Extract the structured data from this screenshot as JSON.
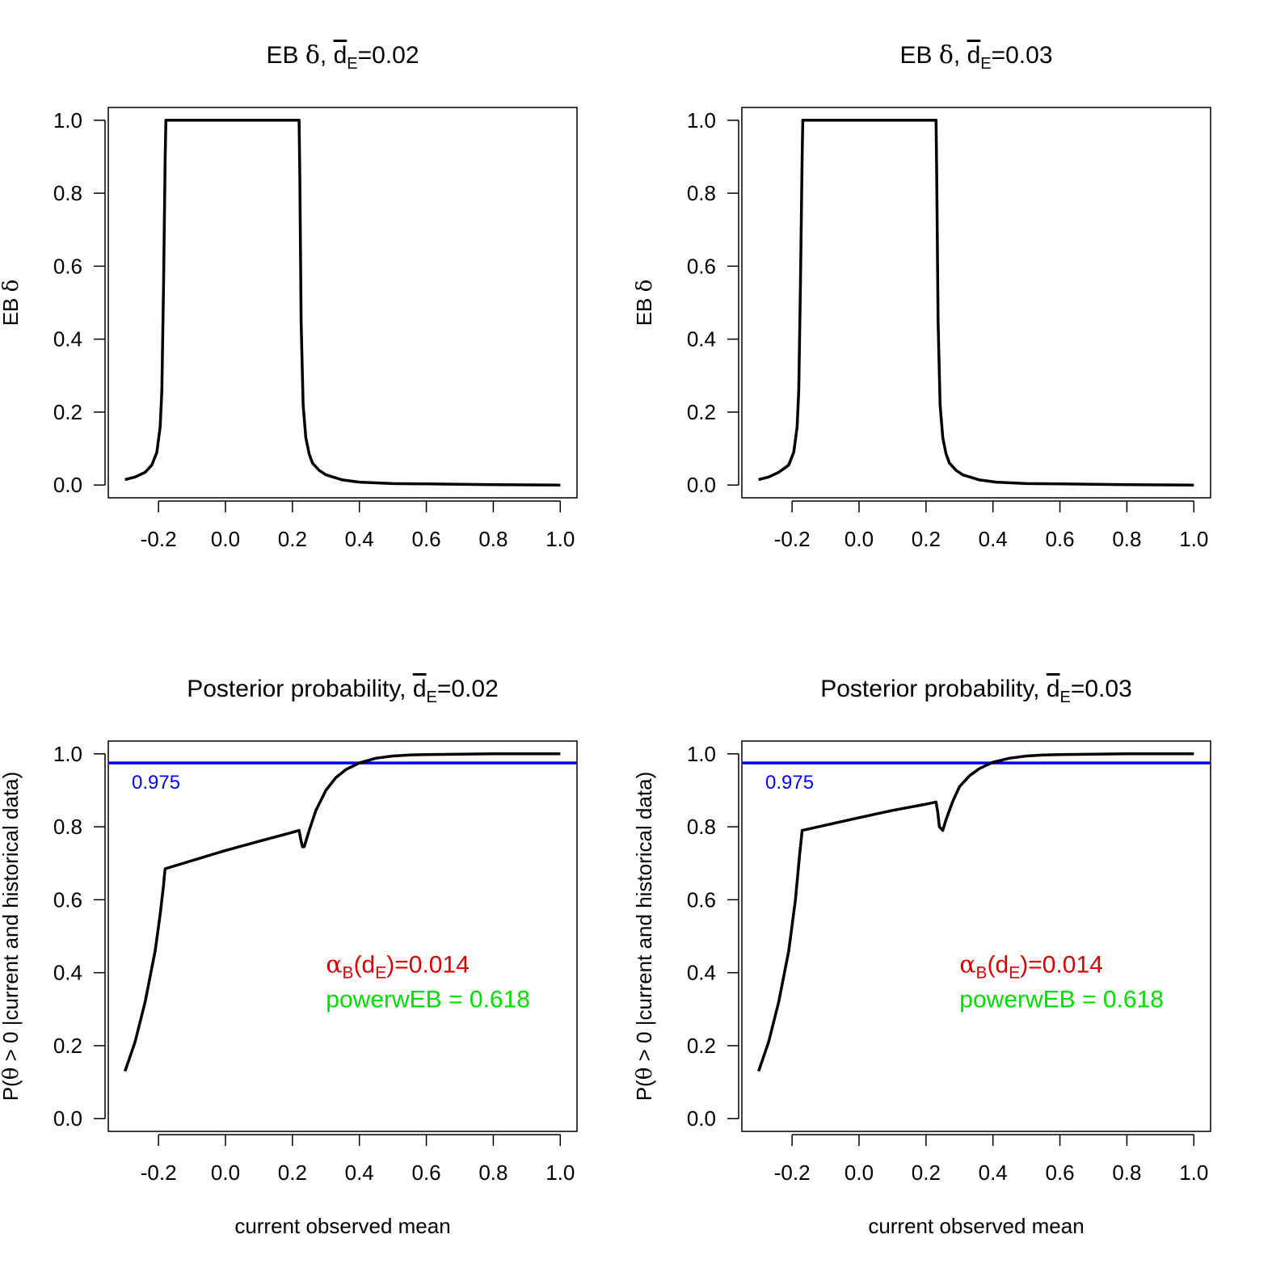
{
  "chart_data": [
    {
      "type": "line",
      "panel": "top-left",
      "title": {
        "prefix": "EB ",
        "greek": "δ",
        "sep": ", ",
        "var": "d",
        "sub": "E",
        "eq": "=0.02"
      },
      "xlabel": "",
      "ylabel": {
        "prefix": "EB ",
        "greek": "δ"
      },
      "xlim": [
        -0.35,
        1.05
      ],
      "ylim": [
        -0.035,
        1.035
      ],
      "xticks": [
        -0.2,
        0.0,
        0.2,
        0.4,
        0.6,
        0.8,
        1.0
      ],
      "xtick_labels": [
        "-0.2",
        "0.0",
        "0.2",
        "0.4",
        "0.6",
        "0.8",
        "1.0"
      ],
      "yticks": [
        0.0,
        0.2,
        0.4,
        0.6,
        0.8,
        1.0
      ],
      "ytick_labels": [
        "0.0",
        "0.2",
        "0.4",
        "0.6",
        "0.8",
        "1.0"
      ],
      "series": [
        {
          "name": "EB delta",
          "color": "#000000",
          "x": [
            -0.3,
            -0.27,
            -0.24,
            -0.22,
            -0.205,
            -0.195,
            -0.19,
            -0.185,
            -0.18,
            -0.178,
            0.22,
            0.222,
            0.226,
            0.232,
            0.24,
            0.25,
            0.26,
            0.28,
            0.3,
            0.35,
            0.4,
            0.5,
            0.6,
            0.8,
            1.0
          ],
          "y": [
            0.015,
            0.022,
            0.035,
            0.055,
            0.09,
            0.16,
            0.26,
            0.55,
            0.9,
            1.0,
            1.0,
            0.85,
            0.45,
            0.22,
            0.13,
            0.085,
            0.06,
            0.04,
            0.028,
            0.014,
            0.008,
            0.004,
            0.003,
            0.001,
            0.0
          ]
        }
      ]
    },
    {
      "type": "line",
      "panel": "top-right",
      "title": {
        "prefix": "EB ",
        "greek": "δ",
        "sep": ", ",
        "var": "d",
        "sub": "E",
        "eq": "=0.03"
      },
      "xlabel": "",
      "ylabel": {
        "prefix": "EB ",
        "greek": "δ"
      },
      "xlim": [
        -0.35,
        1.05
      ],
      "ylim": [
        -0.035,
        1.035
      ],
      "xticks": [
        -0.2,
        0.0,
        0.2,
        0.4,
        0.6,
        0.8,
        1.0
      ],
      "xtick_labels": [
        "-0.2",
        "0.0",
        "0.2",
        "0.4",
        "0.6",
        "0.8",
        "1.0"
      ],
      "yticks": [
        0.0,
        0.2,
        0.4,
        0.6,
        0.8,
        1.0
      ],
      "ytick_labels": [
        "0.0",
        "0.2",
        "0.4",
        "0.6",
        "0.8",
        "1.0"
      ],
      "series": [
        {
          "name": "EB delta",
          "color": "#000000",
          "x": [
            -0.3,
            -0.27,
            -0.24,
            -0.21,
            -0.195,
            -0.185,
            -0.18,
            -0.175,
            -0.17,
            -0.168,
            0.23,
            0.232,
            0.236,
            0.242,
            0.25,
            0.26,
            0.27,
            0.29,
            0.31,
            0.36,
            0.41,
            0.5,
            0.6,
            0.8,
            1.0
          ],
          "y": [
            0.015,
            0.022,
            0.035,
            0.055,
            0.09,
            0.16,
            0.26,
            0.55,
            0.9,
            1.0,
            1.0,
            0.85,
            0.45,
            0.22,
            0.13,
            0.085,
            0.06,
            0.04,
            0.028,
            0.014,
            0.008,
            0.004,
            0.003,
            0.001,
            0.0
          ]
        }
      ]
    },
    {
      "type": "line",
      "panel": "bottom-left",
      "title": {
        "prefix": "Posterior probability",
        "greek": "",
        "sep": ", ",
        "var": "d",
        "sub": "E",
        "eq": "=0.02"
      },
      "xlabel": "current observed mean",
      "ylabel": {
        "prefix": "P(",
        "greek": "θ",
        "rest": " > 0 |current and historical data)"
      },
      "xlim": [
        -0.35,
        1.05
      ],
      "ylim": [
        -0.035,
        1.035
      ],
      "xticks": [
        -0.2,
        0.0,
        0.2,
        0.4,
        0.6,
        0.8,
        1.0
      ],
      "xtick_labels": [
        "-0.2",
        "0.0",
        "0.2",
        "0.4",
        "0.6",
        "0.8",
        "1.0"
      ],
      "yticks": [
        0.0,
        0.2,
        0.4,
        0.6,
        0.8,
        1.0
      ],
      "ytick_labels": [
        "0.0",
        "0.2",
        "0.4",
        "0.6",
        "0.8",
        "1.0"
      ],
      "hline": {
        "value": 0.975,
        "label": "0.975",
        "label_x": -0.28,
        "color": "#0000ff"
      },
      "annotation": {
        "x": 0.3,
        "y1": 0.4,
        "y2": 0.305,
        "alpha_greek": "α",
        "alpha_sub": "B",
        "alpha_mid": "(d",
        "alpha_sub2": "E",
        "alpha_end": ")=0.014",
        "alpha_color": "#e00000",
        "power_text": "powerwEB =  0.618",
        "power_color": "#00e000"
      },
      "series": [
        {
          "name": "posterior probability",
          "color": "#000000",
          "x": [
            -0.3,
            -0.27,
            -0.24,
            -0.21,
            -0.195,
            -0.185,
            -0.182,
            -0.18,
            0.0,
            0.1,
            0.2,
            0.22,
            0.225,
            0.23,
            0.235,
            0.25,
            0.27,
            0.3,
            0.33,
            0.36,
            0.4,
            0.45,
            0.5,
            0.55,
            0.6,
            0.7,
            0.8,
            1.0
          ],
          "y": [
            0.13,
            0.21,
            0.32,
            0.46,
            0.56,
            0.64,
            0.67,
            0.685,
            0.735,
            0.76,
            0.785,
            0.79,
            0.765,
            0.745,
            0.745,
            0.79,
            0.845,
            0.9,
            0.935,
            0.957,
            0.975,
            0.988,
            0.994,
            0.997,
            0.998,
            0.999,
            1.0,
            1.0
          ]
        }
      ]
    },
    {
      "type": "line",
      "panel": "bottom-right",
      "title": {
        "prefix": "Posterior probability",
        "greek": "",
        "sep": ", ",
        "var": "d",
        "sub": "E",
        "eq": "=0.03"
      },
      "xlabel": "current observed mean",
      "ylabel": {
        "prefix": "P(",
        "greek": "θ",
        "rest": " > 0 |current and historical data)"
      },
      "xlim": [
        -0.35,
        1.05
      ],
      "ylim": [
        -0.035,
        1.035
      ],
      "xticks": [
        -0.2,
        0.0,
        0.2,
        0.4,
        0.6,
        0.8,
        1.0
      ],
      "xtick_labels": [
        "-0.2",
        "0.0",
        "0.2",
        "0.4",
        "0.6",
        "0.8",
        "1.0"
      ],
      "yticks": [
        0.0,
        0.2,
        0.4,
        0.6,
        0.8,
        1.0
      ],
      "ytick_labels": [
        "0.0",
        "0.2",
        "0.4",
        "0.6",
        "0.8",
        "1.0"
      ],
      "hline": {
        "value": 0.975,
        "label": "0.975",
        "label_x": -0.28,
        "color": "#0000ff"
      },
      "annotation": {
        "x": 0.3,
        "y1": 0.4,
        "y2": 0.305,
        "alpha_greek": "α",
        "alpha_sub": "B",
        "alpha_mid": "(d",
        "alpha_sub2": "E",
        "alpha_end": ")=0.014",
        "alpha_color": "#e00000",
        "power_text": "powerwEB =  0.618",
        "power_color": "#00e000"
      },
      "series": [
        {
          "name": "posterior probability",
          "color": "#000000",
          "x": [
            -0.3,
            -0.27,
            -0.24,
            -0.21,
            -0.19,
            -0.178,
            -0.172,
            -0.17,
            0.0,
            0.1,
            0.2,
            0.23,
            0.235,
            0.24,
            0.25,
            0.26,
            0.28,
            0.3,
            0.33,
            0.36,
            0.4,
            0.45,
            0.5,
            0.55,
            0.6,
            0.7,
            0.8,
            1.0
          ],
          "y": [
            0.13,
            0.21,
            0.32,
            0.46,
            0.6,
            0.72,
            0.77,
            0.79,
            0.825,
            0.845,
            0.862,
            0.868,
            0.84,
            0.8,
            0.79,
            0.82,
            0.87,
            0.91,
            0.94,
            0.96,
            0.977,
            0.988,
            0.994,
            0.997,
            0.998,
            0.999,
            1.0,
            1.0
          ]
        }
      ]
    }
  ]
}
